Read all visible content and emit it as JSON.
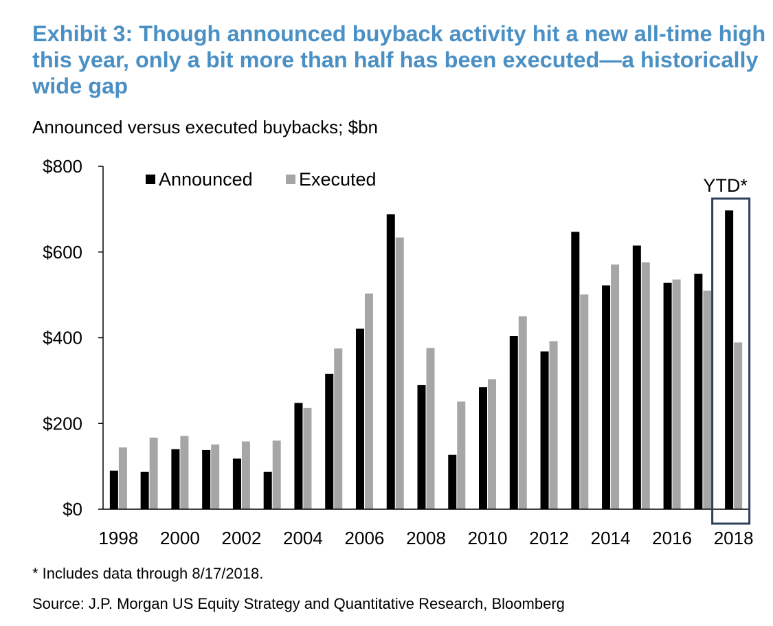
{
  "chart_data": {
    "type": "bar",
    "title": "Exhibit 3: Though announced buyback activity hit a new all-time high this year, only a bit more than half has been executed—a historically wide gap",
    "subtitle": "Announced versus executed buybacks; $bn",
    "categories": [
      "1998",
      "1999",
      "2000",
      "2001",
      "2002",
      "2003",
      "2004",
      "2005",
      "2006",
      "2007",
      "2008",
      "2009",
      "2010",
      "2011",
      "2012",
      "2013",
      "2014",
      "2015",
      "2016",
      "2017",
      "2018"
    ],
    "x_tick_labels": [
      "1998",
      "2000",
      "2002",
      "2004",
      "2006",
      "2008",
      "2010",
      "2012",
      "2014",
      "2016",
      "2018"
    ],
    "series": [
      {
        "name": "Announced",
        "color": "#000000",
        "values": [
          90,
          87,
          140,
          138,
          118,
          87,
          248,
          316,
          421,
          688,
          290,
          127,
          285,
          404,
          368,
          647,
          522,
          615,
          528,
          549,
          697
        ]
      },
      {
        "name": "Executed",
        "color": "#a6a6a6",
        "values": [
          144,
          167,
          171,
          151,
          158,
          160,
          236,
          375,
          503,
          634,
          376,
          251,
          303,
          450,
          392,
          501,
          571,
          576,
          536,
          510,
          389
        ]
      }
    ],
    "y_tick_labels": [
      "$0",
      "$200",
      "$400",
      "$600",
      "$800"
    ],
    "y_ticks": [
      0,
      200,
      400,
      600,
      800
    ],
    "ylim": [
      0,
      800
    ],
    "xlabel": "",
    "ylabel": "",
    "legend_position": "top-left",
    "annotation": "YTD*",
    "highlight_category": "2018",
    "highlight_color": "#2e3f5c"
  },
  "footnote": "* Includes data through 8/17/2018.",
  "source": "Source: J.P. Morgan US Equity Strategy and Quantitative Research, Bloomberg"
}
